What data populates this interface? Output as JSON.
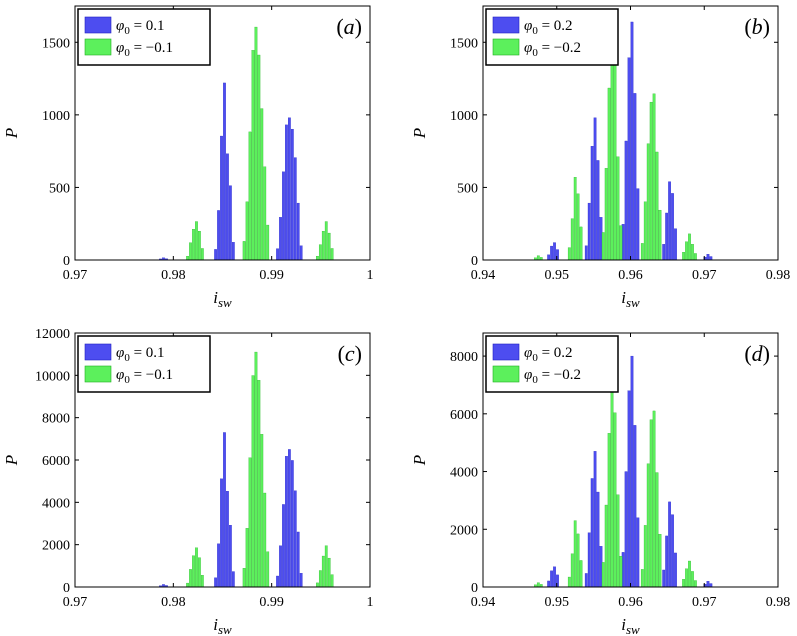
{
  "chart_data": [
    {
      "type": "bar",
      "panel_label": "(a)",
      "xlabel": "i_sw",
      "ylabel": "P",
      "xlim": [
        0.97,
        1.0
      ],
      "ylim": [
        0,
        1750
      ],
      "xticks": [
        0.97,
        0.98,
        0.99,
        1.0
      ],
      "xtick_labels": [
        "0.97",
        "0.98",
        "0.99",
        "1"
      ],
      "yticks": [
        0,
        500,
        1000,
        1500
      ],
      "ytick_labels": [
        "0",
        "500",
        "1000",
        "1500"
      ],
      "series": [
        {
          "name": "φ0 = 0.1",
          "legend_math": "0.1",
          "color": "#4D4DF0",
          "edge": "#2020C0",
          "peaks": [
            {
              "center": 0.979,
              "height": 15,
              "spacing": 0.0003,
              "shape": [
                0.5,
                1,
                0.6
              ]
            },
            {
              "center": 0.9852,
              "height": 1220,
              "spacing": 0.0003,
              "shape": [
                0.06,
                0.28,
                0.7,
                1,
                0.6,
                0.42,
                0.1
              ]
            },
            {
              "center": 0.9918,
              "height": 980,
              "spacing": 0.0003,
              "shape": [
                0.08,
                0.3,
                0.62,
                0.95,
                1,
                0.92,
                0.72,
                0.4,
                0.1
              ]
            }
          ]
        },
        {
          "name": "φ0 = −0.1",
          "legend_math": "−0.1",
          "color": "#5CF05C",
          "edge": "#20B020",
          "peaks": [
            {
              "center": 0.9822,
              "height": 265,
              "spacing": 0.0003,
              "shape": [
                0.1,
                0.45,
                0.8,
                1,
                0.75,
                0.3
              ]
            },
            {
              "center": 0.9884,
              "height": 1605,
              "spacing": 0.0003,
              "shape": [
                0.08,
                0.25,
                0.55,
                0.9,
                1,
                0.88,
                0.65,
                0.4,
                0.15
              ]
            },
            {
              "center": 0.9954,
              "height": 265,
              "spacing": 0.0003,
              "shape": [
                0.1,
                0.4,
                0.75,
                1,
                0.7,
                0.3
              ]
            }
          ]
        }
      ]
    },
    {
      "type": "bar",
      "panel_label": "(b)",
      "xlabel": "i_sw",
      "ylabel": "P",
      "xlim": [
        0.94,
        0.98
      ],
      "ylim": [
        0,
        1750
      ],
      "xticks": [
        0.94,
        0.95,
        0.96,
        0.97,
        0.98
      ],
      "xtick_labels": [
        "0.94",
        "0.95",
        "0.96",
        "0.97",
        "0.98"
      ],
      "yticks": [
        0,
        500,
        1000,
        1500
      ],
      "ytick_labels": [
        "0",
        "500",
        "1000",
        "1500"
      ],
      "series": [
        {
          "name": "φ0 = 0.2",
          "legend_math": "0.2",
          "color": "#4D4DF0",
          "edge": "#2020C0",
          "peaks": [
            {
              "center": 0.9495,
              "height": 120,
              "spacing": 0.0004,
              "shape": [
                0.3,
                0.8,
                1,
                0.6
              ]
            },
            {
              "center": 0.955,
              "height": 980,
              "spacing": 0.0004,
              "shape": [
                0.1,
                0.4,
                0.8,
                1,
                0.7,
                0.3
              ]
            },
            {
              "center": 0.96,
              "height": 1640,
              "spacing": 0.0004,
              "shape": [
                0.15,
                0.5,
                0.85,
                1,
                0.7,
                0.3
              ]
            },
            {
              "center": 0.9653,
              "height": 540,
              "spacing": 0.0004,
              "shape": [
                0.2,
                0.6,
                1,
                0.85,
                0.4
              ]
            },
            {
              "center": 0.9705,
              "height": 40,
              "spacing": 0.0004,
              "shape": [
                0.5,
                1,
                0.6
              ]
            }
          ]
        },
        {
          "name": "φ0 = −0.2",
          "legend_math": "−0.2",
          "color": "#5CF05C",
          "edge": "#20B020",
          "peaks": [
            {
              "center": 0.9475,
              "height": 30,
              "spacing": 0.0004,
              "shape": [
                0.5,
                1,
                0.6
              ]
            },
            {
              "center": 0.9525,
              "height": 570,
              "spacing": 0.0004,
              "shape": [
                0.15,
                0.5,
                1,
                0.8,
                0.4
              ]
            },
            {
              "center": 0.9575,
              "height": 1580,
              "spacing": 0.0004,
              "shape": [
                0.12,
                0.4,
                0.75,
                1,
                0.85,
                0.45,
                0.15
              ]
            },
            {
              "center": 0.9628,
              "height": 1145,
              "spacing": 0.0004,
              "shape": [
                0.1,
                0.35,
                0.7,
                0.95,
                1,
                0.65,
                0.3
              ]
            },
            {
              "center": 0.968,
              "height": 180,
              "spacing": 0.0004,
              "shape": [
                0.3,
                0.7,
                1,
                0.6,
                0.25
              ]
            }
          ]
        }
      ]
    },
    {
      "type": "bar",
      "panel_label": "(c)",
      "xlabel": "i_sw",
      "ylabel": "P",
      "xlim": [
        0.97,
        1.0
      ],
      "ylim": [
        0,
        12000
      ],
      "xticks": [
        0.97,
        0.98,
        0.99,
        1.0
      ],
      "xtick_labels": [
        "0.97",
        "0.98",
        "0.99",
        "1"
      ],
      "yticks": [
        0,
        2000,
        4000,
        6000,
        8000,
        10000,
        12000
      ],
      "ytick_labels": [
        "0",
        "2000",
        "4000",
        "6000",
        "8000",
        "10000",
        "12000"
      ],
      "series": [
        {
          "name": "φ0 = 0.1",
          "legend_math": "0.1",
          "color": "#4D4DF0",
          "edge": "#2020C0",
          "peaks": [
            {
              "center": 0.979,
              "height": 120,
              "spacing": 0.0003,
              "shape": [
                0.5,
                1,
                0.6
              ]
            },
            {
              "center": 0.9852,
              "height": 7300,
              "spacing": 0.0003,
              "shape": [
                0.06,
                0.28,
                0.7,
                1,
                0.62,
                0.4,
                0.1
              ]
            },
            {
              "center": 0.9918,
              "height": 6500,
              "spacing": 0.0003,
              "shape": [
                0.08,
                0.3,
                0.6,
                0.95,
                1,
                0.92,
                0.7,
                0.4,
                0.1
              ]
            }
          ]
        },
        {
          "name": "φ0 = −0.1",
          "legend_math": "−0.1",
          "color": "#5CF05C",
          "edge": "#20B020",
          "peaks": [
            {
              "center": 0.9822,
              "height": 1850,
              "spacing": 0.0003,
              "shape": [
                0.1,
                0.45,
                0.8,
                1,
                0.75,
                0.3
              ]
            },
            {
              "center": 0.9884,
              "height": 11100,
              "spacing": 0.0003,
              "shape": [
                0.08,
                0.25,
                0.55,
                0.9,
                1,
                0.88,
                0.65,
                0.4,
                0.15
              ]
            },
            {
              "center": 0.9954,
              "height": 1950,
              "spacing": 0.0003,
              "shape": [
                0.1,
                0.4,
                0.75,
                1,
                0.7,
                0.3
              ]
            }
          ]
        }
      ]
    },
    {
      "type": "bar",
      "panel_label": "(d)",
      "xlabel": "i_sw",
      "ylabel": "P",
      "xlim": [
        0.94,
        0.98
      ],
      "ylim": [
        0,
        8800
      ],
      "xticks": [
        0.94,
        0.95,
        0.96,
        0.97,
        0.98
      ],
      "xtick_labels": [
        "0.94",
        "0.95",
        "0.96",
        "0.97",
        "0.98"
      ],
      "yticks": [
        0,
        2000,
        4000,
        6000,
        8000
      ],
      "ytick_labels": [
        "0",
        "2000",
        "4000",
        "6000",
        "8000"
      ],
      "series": [
        {
          "name": "φ0 = 0.2",
          "legend_math": "0.2",
          "color": "#4D4DF0",
          "edge": "#2020C0",
          "peaks": [
            {
              "center": 0.9495,
              "height": 700,
              "spacing": 0.0004,
              "shape": [
                0.3,
                0.8,
                1,
                0.6
              ]
            },
            {
              "center": 0.955,
              "height": 4700,
              "spacing": 0.0004,
              "shape": [
                0.1,
                0.4,
                0.8,
                1,
                0.7,
                0.3
              ]
            },
            {
              "center": 0.96,
              "height": 8000,
              "spacing": 0.0004,
              "shape": [
                0.15,
                0.5,
                0.85,
                1,
                0.7,
                0.3
              ]
            },
            {
              "center": 0.9653,
              "height": 2950,
              "spacing": 0.0004,
              "shape": [
                0.2,
                0.6,
                1,
                0.85,
                0.4
              ]
            },
            {
              "center": 0.9705,
              "height": 200,
              "spacing": 0.0004,
              "shape": [
                0.5,
                1,
                0.6
              ]
            }
          ]
        },
        {
          "name": "φ0 = −0.2",
          "legend_math": "−0.2",
          "color": "#5CF05C",
          "edge": "#20B020",
          "peaks": [
            {
              "center": 0.9475,
              "height": 150,
              "spacing": 0.0004,
              "shape": [
                0.5,
                1,
                0.6
              ]
            },
            {
              "center": 0.9525,
              "height": 2300,
              "spacing": 0.0004,
              "shape": [
                0.15,
                0.5,
                1,
                0.8,
                0.4
              ]
            },
            {
              "center": 0.9575,
              "height": 7100,
              "spacing": 0.0004,
              "shape": [
                0.12,
                0.4,
                0.75,
                1,
                0.85,
                0.45,
                0.15
              ]
            },
            {
              "center": 0.9628,
              "height": 6100,
              "spacing": 0.0004,
              "shape": [
                0.1,
                0.35,
                0.7,
                0.95,
                1,
                0.65,
                0.3
              ]
            },
            {
              "center": 0.968,
              "height": 900,
              "spacing": 0.0004,
              "shape": [
                0.3,
                0.7,
                1,
                0.6,
                0.25
              ]
            }
          ]
        }
      ]
    }
  ]
}
